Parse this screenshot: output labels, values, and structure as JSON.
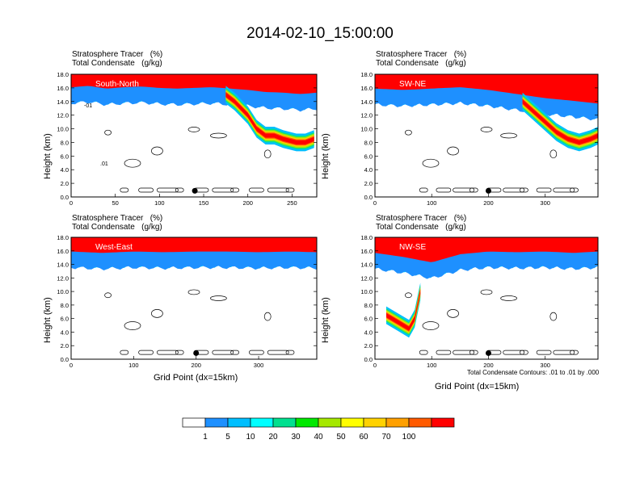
{
  "title": "2014-02-10_15:00:00",
  "colorbar": {
    "colors": [
      "#ffffff",
      "#1e90ff",
      "#00bfff",
      "#00ffff",
      "#00e08f",
      "#00e800",
      "#a5e800",
      "#ffff00",
      "#ffd200",
      "#ffa000",
      "#ff5a00",
      "#ff0000"
    ],
    "labels": [
      "1",
      "5",
      "10",
      "20",
      "30",
      "40",
      "50",
      "60",
      "70",
      "100"
    ]
  },
  "xlabel_text": "Grid Point (dx=15km)",
  "contour_note": "Total Condensate Contours: .01 to .01 by .000",
  "chart_data": [
    {
      "type": "heatmap",
      "title_line1": "Stratosphere Tracer   (%)",
      "title_line2": "Total Condensate   (g/kg)",
      "label": "South-North",
      "ylabel": "Height (km)",
      "xlabel": "",
      "xlim": [
        0,
        278
      ],
      "ylim": [
        0,
        18
      ],
      "xticks": [
        0,
        50,
        100,
        150,
        200,
        250
      ],
      "yticks": [
        "0.0",
        "2.0",
        "4.0",
        "6.0",
        "8.0",
        "10.0",
        "12.0",
        "14.0",
        "16.0",
        "18.0"
      ],
      "tracer_top_x": [
        0,
        20,
        40,
        60,
        80,
        100,
        120,
        140,
        160,
        180,
        200,
        220,
        240,
        260,
        278
      ],
      "tracer_top_y": [
        15.8,
        16.0,
        15.6,
        15.8,
        15.9,
        15.7,
        15.6,
        15.7,
        15.8,
        15.6,
        15.4,
        15.1,
        15.0,
        14.8,
        15.0
      ],
      "intrusion": {
        "x": [
          175,
          185,
          200,
          210,
          220,
          230,
          240,
          255,
          265,
          275
        ],
        "y": [
          15.0,
          14.0,
          12.0,
          10.0,
          9.0,
          9.0,
          8.5,
          8.0,
          8.0,
          8.5
        ]
      },
      "contour_labels": [
        "-01",
        ".01"
      ],
      "marker_x": 140
    },
    {
      "type": "heatmap",
      "title_line1": "Stratosphere Tracer   (%)",
      "title_line2": "Total Condensate   (g/kg)",
      "label": "SW-NE",
      "ylabel": "Height (km)",
      "xlabel": "",
      "xlim": [
        0,
        393
      ],
      "ylim": [
        0,
        18
      ],
      "xticks": [
        0,
        100,
        200,
        300
      ],
      "yticks": [
        "0.0",
        "2.0",
        "4.0",
        "6.0",
        "8.0",
        "10.0",
        "12.0",
        "14.0",
        "16.0",
        "18.0"
      ],
      "tracer_top_x": [
        0,
        50,
        100,
        150,
        200,
        250,
        300,
        350,
        393
      ],
      "tracer_top_y": [
        15.6,
        15.4,
        15.6,
        15.8,
        15.4,
        14.8,
        14.2,
        13.8,
        13.4
      ],
      "intrusion": {
        "x": [
          260,
          280,
          300,
          320,
          340,
          360,
          380,
          393
        ],
        "y": [
          14.0,
          12.5,
          11.0,
          9.5,
          8.5,
          8.0,
          8.5,
          9.0
        ]
      },
      "contour_labels": [],
      "marker_x": 200
    },
    {
      "type": "heatmap",
      "title_line1": "Stratosphere Tracer   (%)",
      "title_line2": "Total Condensate   (g/kg)",
      "label": "West-East",
      "ylabel": "Height (km)",
      "xlabel": "Grid Point (dx=15km)",
      "xlim": [
        0,
        393
      ],
      "ylim": [
        0,
        18
      ],
      "xticks": [
        0,
        100,
        200,
        300
      ],
      "yticks": [
        "0.0",
        "2.0",
        "4.0",
        "6.0",
        "8.0",
        "10.0",
        "12.0",
        "14.0",
        "16.0",
        "18.0"
      ],
      "tracer_top_x": [
        0,
        50,
        100,
        150,
        200,
        250,
        300,
        350,
        393
      ],
      "tracer_top_y": [
        15.6,
        15.4,
        15.6,
        15.5,
        15.6,
        15.6,
        15.5,
        15.6,
        15.5
      ],
      "intrusion": null,
      "contour_labels": [],
      "marker_x": 200
    },
    {
      "type": "heatmap",
      "title_line1": "Stratosphere Tracer   (%)",
      "title_line2": "Total Condensate   (g/kg)",
      "label": "NW-SE",
      "ylabel": "Height (km)",
      "xlabel": "Grid Point (dx=15km)",
      "xlim": [
        0,
        393
      ],
      "ylim": [
        0,
        18
      ],
      "xticks": [
        0,
        100,
        200,
        300
      ],
      "yticks": [
        "0.0",
        "2.0",
        "4.0",
        "6.0",
        "8.0",
        "10.0",
        "12.0",
        "14.0",
        "16.0",
        "18.0"
      ],
      "tracer_top_x": [
        0,
        50,
        100,
        150,
        200,
        250,
        300,
        350,
        393
      ],
      "tracer_top_y": [
        15.4,
        14.8,
        14.0,
        15.2,
        15.6,
        15.5,
        15.6,
        15.4,
        15.6
      ],
      "intrusion": {
        "x": [
          20,
          40,
          60,
          70,
          75,
          80
        ],
        "y": [
          6.5,
          5.5,
          4.5,
          6.0,
          8.0,
          10.0
        ]
      },
      "contour_labels": [],
      "marker_x": 200
    }
  ]
}
